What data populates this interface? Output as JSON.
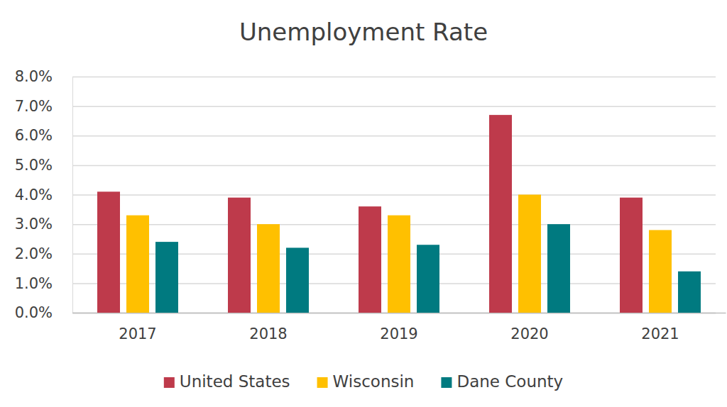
{
  "chart_data": {
    "type": "bar",
    "title": "Unemployment Rate",
    "categories": [
      "2017",
      "2018",
      "2019",
      "2020",
      "2021"
    ],
    "series": [
      {
        "name": "United States",
        "color": "#be3a4b",
        "values": [
          4.1,
          3.9,
          3.6,
          6.7,
          3.9
        ]
      },
      {
        "name": "Wisconsin",
        "color": "#ffc000",
        "values": [
          3.3,
          3.0,
          3.3,
          4.0,
          2.8
        ]
      },
      {
        "name": "Dane County",
        "color": "#007a80",
        "values": [
          2.4,
          2.2,
          2.3,
          3.0,
          1.4
        ]
      }
    ],
    "ylim": [
      0,
      8
    ],
    "yticks": [
      {
        "value": 0,
        "label": "0.0%"
      },
      {
        "value": 1,
        "label": "1.0%"
      },
      {
        "value": 2,
        "label": "2.0%"
      },
      {
        "value": 3,
        "label": "3.0%"
      },
      {
        "value": 4,
        "label": "4.0%"
      },
      {
        "value": 5,
        "label": "5.0%"
      },
      {
        "value": 6,
        "label": "6.0%"
      },
      {
        "value": 7,
        "label": "7.0%"
      },
      {
        "value": 8,
        "label": "8.0%"
      }
    ],
    "grid": true,
    "legend": "bottom"
  }
}
